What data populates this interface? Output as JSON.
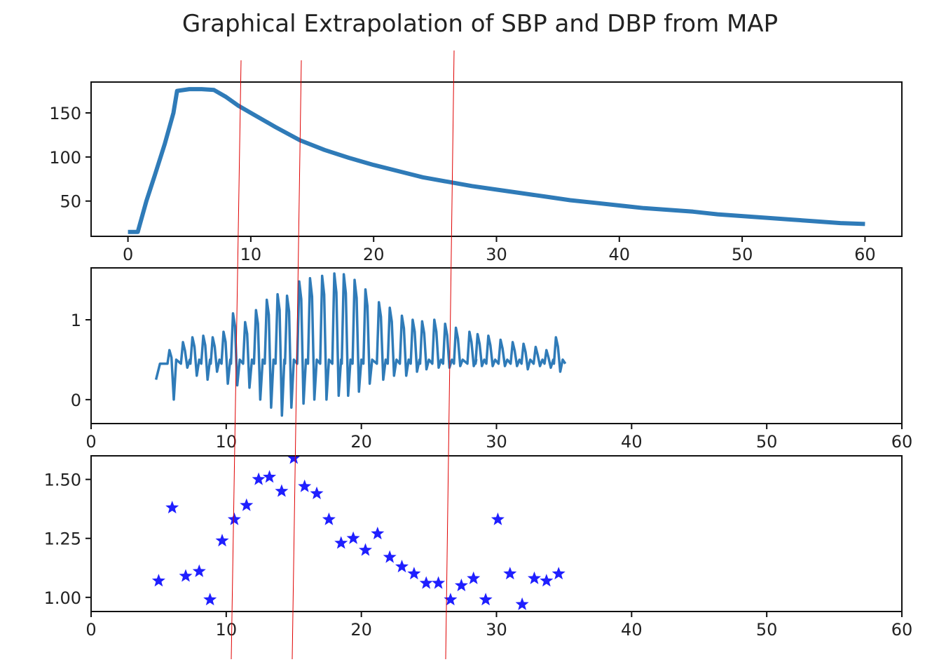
{
  "title": "Graphical Extrapolation of SBP and DBP from MAP",
  "colors": {
    "line": "#2f7bb8",
    "marker": "#1f1fff",
    "annotation": "#e00000"
  },
  "chart_data": [
    {
      "type": "line",
      "name": "pressure",
      "xlim": [
        0,
        60
      ],
      "ylim": [
        10,
        185
      ],
      "xticks": [
        0,
        10,
        20,
        30,
        40,
        50,
        60
      ],
      "yticks": [
        50,
        100,
        150
      ],
      "series": [
        {
          "x": [
            0,
            0.8,
            1.5,
            2.2,
            3,
            3.7,
            4,
            5,
            6,
            7,
            8,
            9,
            10,
            12,
            14,
            16,
            18,
            20,
            22,
            24,
            26,
            28,
            30,
            32,
            34,
            36,
            38,
            40,
            42,
            44,
            46,
            48,
            50,
            52,
            54,
            56,
            58,
            60
          ],
          "y": [
            15,
            15,
            50,
            80,
            115,
            150,
            175,
            177,
            177,
            176,
            168,
            158,
            150,
            134,
            119,
            108,
            99,
            91,
            84,
            77,
            72,
            67,
            63,
            59,
            55,
            51,
            48,
            45,
            42,
            40,
            38,
            35,
            33,
            31,
            29,
            27,
            25,
            24
          ]
        }
      ]
    },
    {
      "type": "line",
      "name": "oscillation",
      "xlim": [
        0,
        60
      ],
      "ylim": [
        -0.3,
        1.65
      ],
      "xticks": [
        0,
        10,
        20,
        30,
        40,
        50,
        60
      ],
      "yticks": [
        0,
        1
      ],
      "beats": {
        "x": [
          5.9,
          6.9,
          7.6,
          8.4,
          9.1,
          9.9,
          10.6,
          11.5,
          12.3,
          13.1,
          13.9,
          14.6,
          15.5,
          16.3,
          17.2,
          18.1,
          18.8,
          19.6,
          20.4,
          21.4,
          22.2,
          23.1,
          23.9,
          24.6,
          25.5,
          26.3,
          27.1,
          28.1,
          28.7,
          29.5,
          30.4,
          31.3,
          32.1,
          33.0,
          33.8,
          34.5
        ],
        "peak": [
          0.62,
          0.72,
          0.78,
          0.8,
          0.78,
          0.85,
          1.08,
          0.97,
          1.12,
          1.25,
          1.32,
          1.3,
          1.48,
          1.52,
          1.55,
          1.58,
          1.57,
          1.5,
          1.38,
          1.22,
          1.15,
          1.05,
          1.0,
          0.98,
          1.0,
          0.95,
          0.9,
          0.85,
          0.82,
          0.8,
          0.75,
          0.72,
          0.7,
          0.66,
          0.62,
          0.78
        ],
        "trough": [
          0.0,
          0.4,
          0.3,
          0.25,
          0.35,
          0.2,
          0.18,
          0.15,
          0.0,
          -0.1,
          -0.2,
          -0.1,
          -0.05,
          0.0,
          0.0,
          0.05,
          0.05,
          0.1,
          0.2,
          0.25,
          0.3,
          0.3,
          0.35,
          0.38,
          0.4,
          0.4,
          0.42,
          0.42,
          0.42,
          0.42,
          0.42,
          0.42,
          0.38,
          0.42,
          0.4,
          0.35
        ]
      },
      "range": [
        4.8,
        35.1
      ],
      "baseline": 0.45
    },
    {
      "type": "scatter",
      "name": "ratios",
      "xlim": [
        0,
        60
      ],
      "ylim": [
        0.94,
        1.6
      ],
      "xticks": [
        0,
        10,
        20,
        30,
        40,
        50,
        60
      ],
      "yticks": [
        1.0,
        1.25,
        1.5
      ],
      "ytick_labels": [
        "1.00",
        "1.25",
        "1.50"
      ],
      "marker": "star",
      "points": {
        "x": [
          5,
          6,
          7,
          8,
          8.8,
          9.7,
          10.6,
          11.5,
          12.4,
          13.2,
          14.1,
          15,
          15.8,
          16.7,
          17.6,
          18.5,
          19.4,
          20.3,
          21.2,
          22.1,
          23,
          23.9,
          24.8,
          25.7,
          26.6,
          27.4,
          28.3,
          29.2,
          30.1,
          31,
          31.9,
          32.8,
          33.7,
          34.6
        ],
        "y": [
          1.07,
          1.38,
          1.09,
          1.11,
          0.99,
          1.24,
          1.33,
          1.39,
          1.5,
          1.51,
          1.45,
          1.59,
          1.47,
          1.44,
          1.33,
          1.23,
          1.25,
          1.2,
          1.27,
          1.17,
          1.13,
          1.1,
          1.06,
          1.06,
          0.99,
          1.05,
          1.08,
          0.99,
          1.33,
          1.1,
          0.97,
          1.08,
          1.07,
          1.1
        ]
      }
    }
  ],
  "annotation_lines": [
    {
      "x1": 344,
      "y1": 86,
      "x2": 330,
      "y2": 940
    },
    {
      "x1": 430,
      "y1": 86,
      "x2": 417,
      "y2": 940
    },
    {
      "x1": 648,
      "y1": 72,
      "x2": 636,
      "y2": 940
    }
  ]
}
